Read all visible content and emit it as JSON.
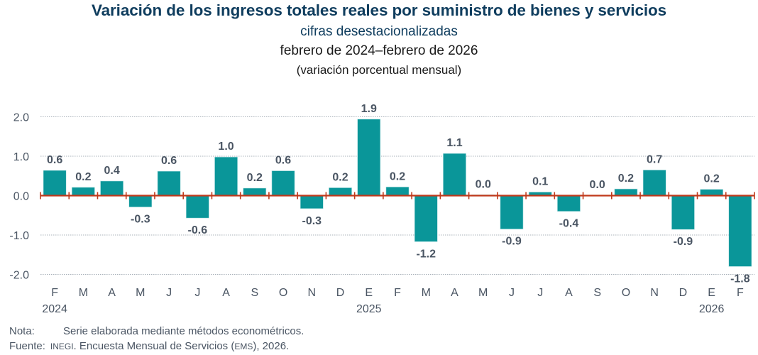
{
  "header": {
    "title": "Variación de los ingresos totales reales por suministro de bienes y servicios",
    "subtitle": "cifras desestacionalizadas",
    "period": "febrero de 2024–febrero de 2026",
    "unit": "(variación porcentual mensual)"
  },
  "footer": {
    "note_label": "Nota:",
    "note_text": "Serie elaborada mediante métodos econométricos.",
    "source_label": "Fuente:",
    "source_org": "INEGI",
    "source_text_1": ". Encuesta Mensual de Servicios (",
    "source_abbr": "EMS",
    "source_text_2": "), 2026."
  },
  "colors": {
    "bar": "#0a9699",
    "zero_line": "#c0391b",
    "grid": "#a9b1ba",
    "title": "#0f3d5e"
  },
  "chart_data": {
    "type": "bar",
    "title": "Variación de los ingresos totales reales por suministro de bienes y servicios",
    "subtitle": "cifras desestacionalizadas; febrero de 2024–febrero de 2026 (variación porcentual mensual)",
    "xlabel": "",
    "ylabel": "",
    "ylim": [
      -2.0,
      2.0
    ],
    "yticks": [
      2.0,
      1.0,
      0.0,
      -1.0,
      -2.0
    ],
    "ytick_labels": [
      "2.0",
      "1.0",
      "0.0",
      "-1.0",
      "-2.0"
    ],
    "grid": true,
    "categories": [
      "F",
      "M",
      "A",
      "M",
      "J",
      "J",
      "A",
      "S",
      "O",
      "N",
      "D",
      "E",
      "F",
      "M",
      "A",
      "M",
      "J",
      "J",
      "A",
      "S",
      "O",
      "N",
      "D",
      "E",
      "F"
    ],
    "year_labels": [
      {
        "index": 0,
        "label": "2024"
      },
      {
        "index": 11,
        "label": "2025"
      },
      {
        "index": 23,
        "label": "2026"
      }
    ],
    "values": [
      0.64,
      0.21,
      0.37,
      -0.29,
      0.62,
      -0.57,
      0.98,
      0.19,
      0.63,
      -0.33,
      0.2,
      1.94,
      0.22,
      -1.17,
      1.07,
      0.02,
      -0.85,
      0.09,
      -0.4,
      0.01,
      0.17,
      0.65,
      -0.86,
      0.16,
      -1.8
    ],
    "data_labels": [
      "0.6",
      "0.2",
      "0.4",
      "-0.3",
      "0.6",
      "-0.6",
      "1.0",
      "0.2",
      "0.6",
      "-0.3",
      "0.2",
      "1.9",
      "0.2",
      "-1.2",
      "1.1",
      "0.0",
      "-0.9",
      "0.1",
      "-0.4",
      "0.0",
      "0.2",
      "0.7",
      "-0.9",
      "0.2",
      "-1.8"
    ]
  }
}
